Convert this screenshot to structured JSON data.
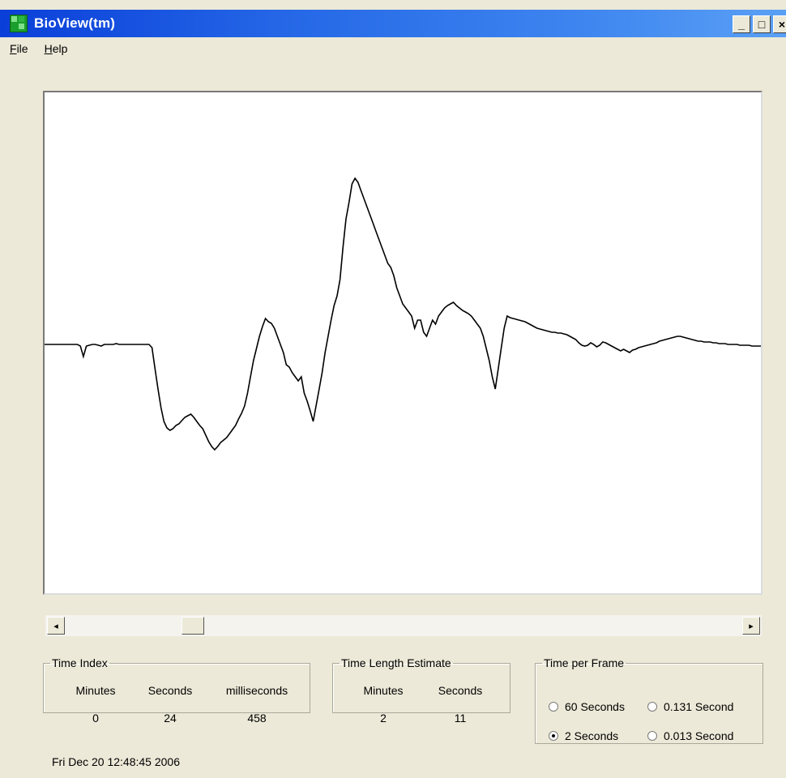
{
  "window": {
    "title": "BioView(tm)",
    "buttons": {
      "minimize": "_",
      "maximize": "□",
      "close": "×"
    }
  },
  "menu": [
    "File",
    "Help"
  ],
  "waveform": {
    "samples": [
      0,
      0,
      0,
      0,
      0,
      0,
      0,
      0,
      0,
      0,
      0,
      0,
      -2,
      -15,
      -2,
      -1,
      0,
      0,
      -1,
      -2,
      0,
      0,
      0,
      0,
      1,
      0,
      0,
      0,
      0,
      0,
      0,
      0,
      0,
      0,
      0,
      0,
      -4,
      -30,
      -55,
      -78,
      -95,
      -103,
      -106,
      -104,
      -100,
      -98,
      -94,
      -90,
      -88,
      -86,
      -90,
      -95,
      -100,
      -104,
      -112,
      -120,
      -126,
      -130,
      -126,
      -121,
      -118,
      -115,
      -110,
      -105,
      -100,
      -92,
      -85,
      -76,
      -60,
      -40,
      -20,
      -5,
      10,
      22,
      32,
      28,
      26,
      20,
      10,
      0,
      -10,
      -25,
      -28,
      -35,
      -40,
      -45,
      -40,
      -60,
      -70,
      -82,
      -95,
      -75,
      -55,
      -35,
      -10,
      10,
      30,
      48,
      60,
      80,
      120,
      155,
      175,
      198,
      205,
      200,
      190,
      180,
      170,
      160,
      150,
      140,
      130,
      120,
      110,
      100,
      95,
      85,
      70,
      60,
      50,
      45,
      40,
      35,
      20,
      30,
      30,
      15,
      10,
      20,
      30,
      25,
      35,
      40,
      45,
      48,
      50,
      52,
      48,
      45,
      42,
      40,
      38,
      35,
      30,
      25,
      20,
      10,
      -5,
      -20,
      -40,
      -55,
      -30,
      -5,
      20,
      35,
      33,
      32,
      31,
      30,
      29,
      28,
      26,
      24,
      22,
      20,
      19,
      18,
      17,
      16,
      15,
      15,
      14,
      14,
      13,
      12,
      10,
      8,
      6,
      2,
      -1,
      -2,
      -1,
      2,
      0,
      -3,
      -1,
      3,
      2,
      0,
      -2,
      -4,
      -6,
      -8,
      -6,
      -8,
      -10,
      -7,
      -6,
      -4,
      -3,
      -2,
      -1,
      0,
      1,
      2,
      4,
      5,
      6,
      7,
      8,
      9,
      10,
      10,
      9,
      8,
      7,
      6,
      5,
      4,
      4,
      3,
      3,
      3,
      2,
      2,
      1,
      1,
      1,
      0,
      0,
      0,
      0,
      -1,
      -1,
      -1,
      -1,
      -2,
      -2,
      -2,
      -2
    ]
  },
  "scrollbar": {
    "left_arrow": "◂",
    "right_arrow": "▸"
  },
  "time_index": {
    "label": "Time Index",
    "headers": [
      "Minutes",
      "Seconds",
      "milliseconds"
    ],
    "values": [
      "0",
      "24",
      "458"
    ]
  },
  "time_length": {
    "label": "Time Length Estimate",
    "headers": [
      "Minutes",
      "Seconds"
    ],
    "values": [
      "2",
      "11"
    ]
  },
  "time_per_frame": {
    "label": "Time per Frame",
    "options": [
      {
        "label": "60 Seconds",
        "selected": false
      },
      {
        "label": "0.131 Second",
        "selected": false
      },
      {
        "label": "2 Seconds",
        "selected": true
      },
      {
        "label": "0.013 Second",
        "selected": false
      }
    ]
  },
  "status": {
    "datetime": "Fri Dec 20 12:48:45 2006"
  }
}
